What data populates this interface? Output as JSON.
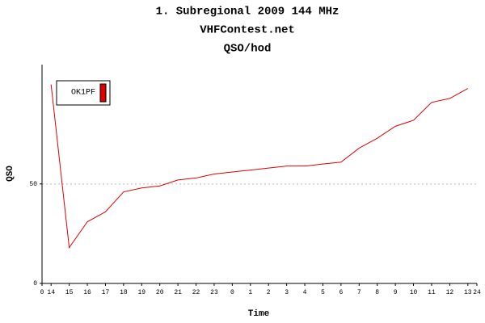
{
  "chart_data": {
    "type": "line",
    "title": "1. Subregional 2009  144 MHz",
    "subtitle": "VHFContest.net",
    "subtitle2": "QSO/hod",
    "xlabel": "Time",
    "ylabel": "QSO",
    "x": [
      0.5,
      1.5,
      2.5,
      3.5,
      4.5,
      5.5,
      6.5,
      7.5,
      8.5,
      9.5,
      10.5,
      11.5,
      12.5,
      13.5,
      14.5,
      15.5,
      16.5,
      17.5,
      18.5,
      19.5,
      20.5,
      21.5,
      22.5,
      23.5
    ],
    "series": [
      {
        "name": "OK1PF",
        "color": "#e00000",
        "values": [
          100,
          18,
          31,
          36,
          46,
          48,
          49,
          52,
          53,
          55,
          56,
          57,
          58,
          59,
          59,
          60,
          61,
          68,
          73,
          79,
          82,
          91,
          93,
          98
        ]
      }
    ],
    "xlim": [
      0,
      24
    ],
    "xticks": [
      {
        "value": 0,
        "label": "0"
      },
      {
        "value": 0.5,
        "label": "14"
      },
      {
        "value": 1.5,
        "label": "15"
      },
      {
        "value": 2.5,
        "label": "16"
      },
      {
        "value": 3.5,
        "label": "17"
      },
      {
        "value": 4.5,
        "label": "18"
      },
      {
        "value": 5.5,
        "label": "19"
      },
      {
        "value": 6.5,
        "label": "20"
      },
      {
        "value": 7.5,
        "label": "21"
      },
      {
        "value": 8.5,
        "label": "22"
      },
      {
        "value": 9.5,
        "label": "23"
      },
      {
        "value": 10.5,
        "label": "0"
      },
      {
        "value": 11.5,
        "label": "1"
      },
      {
        "value": 12.5,
        "label": "2"
      },
      {
        "value": 13.5,
        "label": "3"
      },
      {
        "value": 14.5,
        "label": "4"
      },
      {
        "value": 15.5,
        "label": "5"
      },
      {
        "value": 16.5,
        "label": "6"
      },
      {
        "value": 17.5,
        "label": "7"
      },
      {
        "value": 18.5,
        "label": "8"
      },
      {
        "value": 19.5,
        "label": "9"
      },
      {
        "value": 20.5,
        "label": "10"
      },
      {
        "value": 21.5,
        "label": "11"
      },
      {
        "value": 22.5,
        "label": "12"
      },
      {
        "value": 23.5,
        "label": "13"
      },
      {
        "value": 24,
        "label": "24"
      }
    ],
    "ylim": [
      0,
      110
    ],
    "yticks": [
      0,
      50
    ],
    "grid": true,
    "legend": "upper left"
  }
}
